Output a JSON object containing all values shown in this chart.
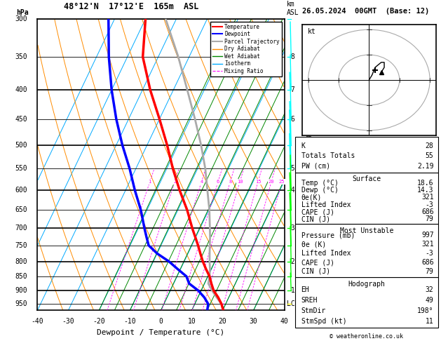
{
  "title_left": "48°12'N  17°12'E  165m  ASL",
  "title_right": "26.05.2024  00GMT  (Base: 12)",
  "xlabel": "Dewpoint / Temperature (°C)",
  "ylabel_left": "hPa",
  "ylabel_right": "km\nASL",
  "pressure_levels": [
    300,
    350,
    400,
    450,
    500,
    550,
    600,
    650,
    700,
    750,
    800,
    850,
    900,
    950
  ],
  "pressure_major": [
    300,
    400,
    500,
    600,
    700,
    800,
    900
  ],
  "km_labels": {
    "350": "8",
    "400": "7",
    "450": "6",
    "550": "5",
    "600": "4",
    "700": "3",
    "800": "2",
    "900": "1",
    "950": "LCL"
  },
  "mixing_ratio_values": [
    1,
    2,
    4,
    6,
    8,
    10,
    15,
    20,
    25
  ],
  "sounding_temp": {
    "pressure": [
      975,
      950,
      925,
      900,
      875,
      850,
      825,
      800,
      775,
      750,
      725,
      700,
      650,
      600,
      550,
      500,
      450,
      400,
      350,
      300
    ],
    "temp": [
      20.2,
      18.6,
      16.5,
      14.0,
      12.2,
      10.5,
      8.2,
      6.0,
      4.0,
      2.0,
      -0.2,
      -2.5,
      -7.0,
      -12.5,
      -18.0,
      -23.5,
      -30.0,
      -37.5,
      -45.0,
      -50.0
    ]
  },
  "sounding_dewp": {
    "pressure": [
      975,
      950,
      925,
      900,
      875,
      850,
      825,
      800,
      775,
      750,
      725,
      700,
      650,
      600,
      550,
      500,
      450,
      400,
      350,
      300
    ],
    "dewp": [
      15.0,
      14.3,
      12.0,
      9.0,
      5.0,
      3.0,
      -1.0,
      -5.0,
      -10.0,
      -14.0,
      -16.0,
      -18.0,
      -22.0,
      -27.0,
      -32.0,
      -38.0,
      -44.0,
      -50.0,
      -56.0,
      -62.0
    ]
  },
  "parcel_trajectory": {
    "pressure": [
      975,
      950,
      925,
      900,
      875,
      850,
      825,
      800,
      775,
      750,
      725,
      700,
      650,
      600,
      550,
      500,
      450,
      400,
      350,
      300
    ],
    "temp": [
      20.2,
      18.6,
      16.0,
      13.5,
      11.2,
      10.5,
      9.5,
      8.2,
      7.0,
      5.8,
      4.6,
      3.2,
      0.2,
      -3.5,
      -7.5,
      -12.5,
      -18.5,
      -25.5,
      -33.5,
      -43.5
    ]
  },
  "lcl_pressure": 950,
  "stats": {
    "K": 28,
    "Totals_Totals": 55,
    "PW_cm": 2.19,
    "Surface_Temp": 18.6,
    "Surface_Dewp": 14.3,
    "Surface_ThetaE": 321,
    "Surface_LI": -3,
    "Surface_CAPE": 686,
    "Surface_CIN": 79,
    "MU_Pressure": 997,
    "MU_ThetaE": 321,
    "MU_LI": -3,
    "MU_CAPE": 686,
    "MU_CIN": 79,
    "EH": 32,
    "SREH": 49,
    "StmDir": 198,
    "StmSpd": 11
  },
  "colors": {
    "temperature": "#ff0000",
    "dewpoint": "#0000ff",
    "parcel": "#aaaaaa",
    "dry_adiabat": "#ff8c00",
    "wet_adiabat": "#008800",
    "isotherm": "#00aaff",
    "mixing_ratio": "#ff00ff",
    "background": "#ffffff"
  },
  "wind_barb_colors": {
    "300": "#00ffff",
    "350": "#00ffff",
    "400": "#00ffff",
    "450": "#00ffff",
    "500": "#00ffff",
    "550": "#00ffff",
    "600": "#00ff00",
    "650": "#00ff00",
    "700": "#00ff00",
    "750": "#00ff00",
    "800": "#00ff00",
    "850": "#00ff00",
    "900": "#00ff00",
    "950": "#ffff00"
  },
  "wind_barb_speeds": {
    "300": 12,
    "350": 14,
    "400": 16,
    "450": 18,
    "500": 22,
    "550": 20,
    "600": 18,
    "650": 16,
    "700": 14,
    "750": 12,
    "800": 10,
    "850": 8,
    "900": 5,
    "950": 2
  }
}
